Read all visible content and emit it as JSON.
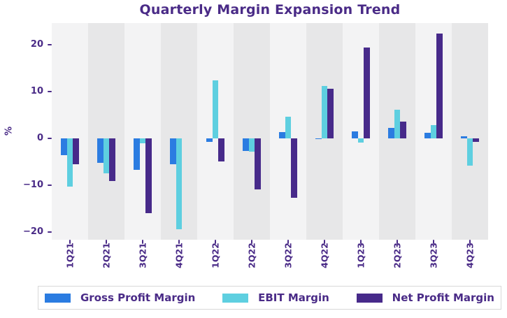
{
  "chart_data": {
    "type": "bar",
    "title": "Quarterly Margin Expansion Trend",
    "xlabel": "",
    "ylabel": "%",
    "categories": [
      "1Q21",
      "2Q21",
      "3Q21",
      "4Q21",
      "1Q22",
      "2Q22",
      "3Q22",
      "4Q22",
      "1Q23",
      "2Q23",
      "3Q23",
      "4Q23"
    ],
    "series": [
      {
        "name": "Gross Profit Margin",
        "color": "#2b7ce1",
        "values": [
          -3.6,
          -5.3,
          -6.7,
          -5.5,
          -0.8,
          -2.7,
          1.3,
          -0.2,
          1.5,
          2.3,
          1.2,
          0.5
        ]
      },
      {
        "name": "EBIT Margin",
        "color": "#5ecfe0",
        "values": [
          -10.4,
          -7.5,
          -1.0,
          -19.4,
          12.4,
          -2.8,
          4.7,
          11.3,
          -0.9,
          6.1,
          2.8,
          -5.9
        ]
      },
      {
        "name": "Net Profit Margin",
        "color": "#472a8a",
        "values": [
          -5.5,
          -9.1,
          -16.0,
          0.0,
          -5.0,
          -10.9,
          -12.7,
          10.7,
          19.4,
          3.6,
          22.4,
          -0.8
        ]
      }
    ],
    "yticks": [
      20,
      10,
      0,
      -10,
      -20
    ],
    "ylim": [
      -21.7,
      24.7
    ],
    "grid": false,
    "legend_position": "bottom",
    "band_colors": [
      "#f3f3f4",
      "#e7e7e8"
    ]
  },
  "colors": {
    "text": "#4a2b87",
    "background": "#ffffff",
    "legend_border": "#d8d8d8"
  }
}
